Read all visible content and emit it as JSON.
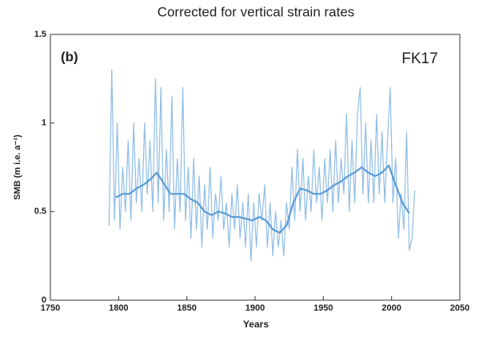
{
  "chart_data": {
    "type": "line",
    "title": "Corrected for vertical strain rates",
    "panel_label": "(b)",
    "annotation": "FK17",
    "annotation_color": "#5b9bd5",
    "x_label": "Years",
    "y_label": "SMB (m i.e. a⁻¹)",
    "xlim": [
      1750,
      2050
    ],
    "xticks": [
      1750,
      1800,
      1850,
      1900,
      1950,
      2000,
      2050
    ],
    "ylim": [
      0,
      1.5
    ],
    "yticks": [
      0,
      0.5,
      1,
      1.5
    ],
    "grid": false,
    "series": [
      {
        "color": "#8fbde6",
        "width": 1.2,
        "x": [
          1793,
          1795,
          1797,
          1799,
          1801,
          1803,
          1805,
          1807,
          1809,
          1811,
          1813,
          1815,
          1817,
          1819,
          1821,
          1823,
          1825,
          1827,
          1829,
          1831,
          1833,
          1835,
          1837,
          1839,
          1841,
          1843,
          1845,
          1847,
          1849,
          1851,
          1853,
          1855,
          1857,
          1859,
          1861,
          1863,
          1865,
          1867,
          1869,
          1871,
          1873,
          1875,
          1877,
          1879,
          1881,
          1883,
          1885,
          1887,
          1889,
          1891,
          1893,
          1895,
          1897,
          1899,
          1901,
          1903,
          1905,
          1907,
          1909,
          1911,
          1913,
          1915,
          1917,
          1919,
          1921,
          1923,
          1925,
          1927,
          1929,
          1931,
          1933,
          1935,
          1937,
          1939,
          1941,
          1943,
          1945,
          1947,
          1949,
          1951,
          1953,
          1955,
          1957,
          1959,
          1961,
          1963,
          1965,
          1967,
          1969,
          1971,
          1973,
          1975,
          1977,
          1979,
          1981,
          1983,
          1985,
          1987,
          1989,
          1991,
          1993,
          1995,
          1997,
          1999,
          2001,
          2003,
          2005,
          2007,
          2009,
          2011,
          2013,
          2015,
          2017
        ],
        "values": [
          0.42,
          1.3,
          0.45,
          1.0,
          0.4,
          0.75,
          0.5,
          0.9,
          0.45,
          1.0,
          0.55,
          0.8,
          0.5,
          1.0,
          0.6,
          0.9,
          0.5,
          1.25,
          0.55,
          1.2,
          0.45,
          0.85,
          0.5,
          1.15,
          0.4,
          0.8,
          0.5,
          1.2,
          0.45,
          0.75,
          0.35,
          0.8,
          0.4,
          0.7,
          0.3,
          0.65,
          0.4,
          0.75,
          0.35,
          0.6,
          0.45,
          0.7,
          0.4,
          0.55,
          0.3,
          0.6,
          0.4,
          0.65,
          0.35,
          0.55,
          0.3,
          0.6,
          0.22,
          0.55,
          0.3,
          0.6,
          0.45,
          0.65,
          0.3,
          0.55,
          0.25,
          0.5,
          0.3,
          0.45,
          0.25,
          0.55,
          0.4,
          0.75,
          0.45,
          0.85,
          0.5,
          0.8,
          0.45,
          0.7,
          0.5,
          0.85,
          0.55,
          0.75,
          0.45,
          0.8,
          0.55,
          0.85,
          0.5,
          0.9,
          0.55,
          0.8,
          0.6,
          1.05,
          0.5,
          0.9,
          0.55,
          1.05,
          1.2,
          0.6,
          1.0,
          0.55,
          0.9,
          0.55,
          1.05,
          0.6,
          0.95,
          0.55,
          0.9,
          1.2,
          0.55,
          0.8,
          0.35,
          0.6,
          0.4,
          0.95,
          0.28,
          0.35,
          0.62
        ]
      },
      {
        "color": "#5b9bd5",
        "width": 2.2,
        "x": [
          1798,
          1803,
          1808,
          1813,
          1818,
          1823,
          1828,
          1833,
          1838,
          1843,
          1848,
          1853,
          1858,
          1863,
          1868,
          1873,
          1878,
          1883,
          1888,
          1893,
          1898,
          1903,
          1908,
          1913,
          1918,
          1923,
          1928,
          1933,
          1938,
          1943,
          1948,
          1953,
          1958,
          1963,
          1968,
          1973,
          1978,
          1983,
          1988,
          1993,
          1998,
          2003,
          2008,
          2013
        ],
        "values": [
          0.58,
          0.6,
          0.6,
          0.63,
          0.65,
          0.68,
          0.72,
          0.66,
          0.6,
          0.6,
          0.6,
          0.57,
          0.55,
          0.5,
          0.48,
          0.5,
          0.49,
          0.47,
          0.47,
          0.46,
          0.45,
          0.47,
          0.45,
          0.4,
          0.38,
          0.42,
          0.55,
          0.63,
          0.62,
          0.6,
          0.6,
          0.62,
          0.65,
          0.67,
          0.7,
          0.72,
          0.75,
          0.72,
          0.7,
          0.72,
          0.76,
          0.65,
          0.55,
          0.49
        ]
      }
    ]
  }
}
